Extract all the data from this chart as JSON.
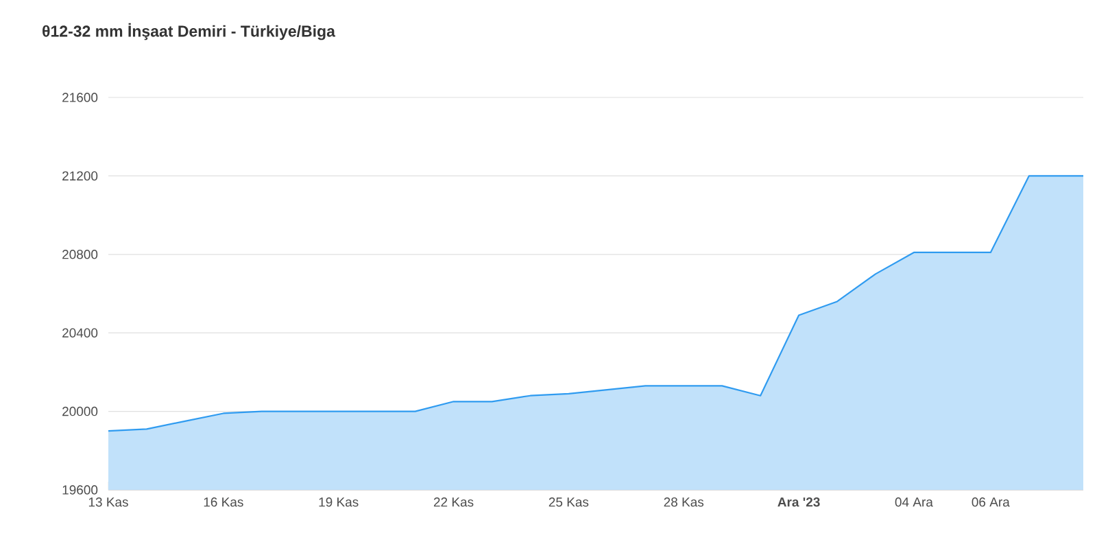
{
  "chart_data": {
    "type": "area",
    "title": "θ12-32 mm İnşaat Demiri - Türkiye/Biga",
    "x": [
      "2023-11-13",
      "2023-11-14",
      "2023-11-15",
      "2023-11-16",
      "2023-11-17",
      "2023-11-18",
      "2023-11-19",
      "2023-11-20",
      "2023-11-21",
      "2023-11-22",
      "2023-11-23",
      "2023-11-24",
      "2023-11-25",
      "2023-11-26",
      "2023-11-27",
      "2023-11-28",
      "2023-11-29",
      "2023-11-30",
      "2023-12-01",
      "2023-12-02",
      "2023-12-03",
      "2023-12-04",
      "2023-12-05",
      "2023-12-06",
      "2023-12-07",
      "2023-12-08",
      "2023-12-08T10:00"
    ],
    "series": [
      {
        "color": "#2f9bf0",
        "values": [
          19900,
          19910,
          19950,
          19990,
          20000,
          20000,
          20000,
          20000,
          20000,
          20050,
          20050,
          20080,
          20090,
          20110,
          20130,
          20130,
          20130,
          20080,
          20490,
          20560,
          20700,
          20810,
          20810,
          20810,
          21200,
          21200,
          21200
        ]
      }
    ],
    "xlim": [
      "2023-11-13",
      "2023-12-08T10:00"
    ],
    "xticks": [
      {
        "value": "2023-11-13",
        "label": "13 Kas"
      },
      {
        "value": "2023-11-16",
        "label": "16 Kas"
      },
      {
        "value": "2023-11-19",
        "label": "19 Kas"
      },
      {
        "value": "2023-11-22",
        "label": "22 Kas"
      },
      {
        "value": "2023-11-25",
        "label": "25 Kas"
      },
      {
        "value": "2023-11-28",
        "label": "28 Kas"
      },
      {
        "value": "2023-12-01",
        "label": "Ara '23"
      },
      {
        "value": "2023-12-04",
        "label": "04 Ara"
      },
      {
        "value": "2023-12-06",
        "label": "06 Ara"
      }
    ],
    "ylim": [
      19600,
      21600
    ],
    "yticks": [
      19600,
      20000,
      20400,
      20800,
      21200,
      21600
    ],
    "grid": "y",
    "marker": "none",
    "line_style": "solid"
  }
}
